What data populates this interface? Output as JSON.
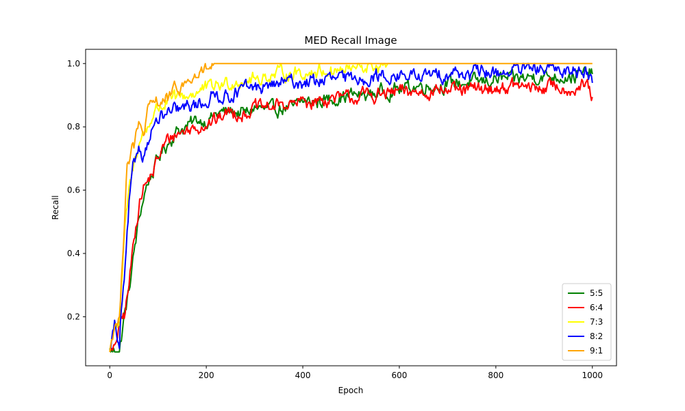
{
  "chart_data": {
    "type": "line",
    "title": "MED Recall Image",
    "xlabel": "Epoch",
    "ylabel": "Recall",
    "xlim": [
      -50,
      1050
    ],
    "ylim": [
      0.045,
      1.045
    ],
    "xticks": [
      0,
      200,
      400,
      600,
      800,
      1000
    ],
    "yticks": [
      0.2,
      0.4,
      0.6,
      0.8,
      1.0
    ],
    "ytick_labels": [
      "0.2",
      "0.4",
      "0.6",
      "0.8",
      "1.0"
    ],
    "grid": false,
    "legend_position": "lower-right",
    "series": [
      {
        "name": "5:5",
        "color": "#008000",
        "x": [
          0,
          10,
          20,
          30,
          40,
          50,
          60,
          70,
          80,
          90,
          100,
          120,
          140,
          160,
          180,
          200,
          220,
          250,
          280,
          300,
          330,
          350,
          380,
          400,
          430,
          460,
          500,
          530,
          560,
          600,
          640,
          680,
          720,
          760,
          800,
          840,
          880,
          920,
          960,
          1000
        ],
        "y": [
          0.09,
          0.09,
          0.09,
          0.2,
          0.28,
          0.4,
          0.5,
          0.58,
          0.63,
          0.66,
          0.7,
          0.75,
          0.79,
          0.8,
          0.82,
          0.82,
          0.84,
          0.85,
          0.84,
          0.86,
          0.85,
          0.86,
          0.86,
          0.88,
          0.88,
          0.89,
          0.9,
          0.9,
          0.91,
          0.92,
          0.93,
          0.93,
          0.94,
          0.94,
          0.95,
          0.95,
          0.96,
          0.96,
          0.96,
          0.97
        ]
      },
      {
        "name": "6:4",
        "color": "#ff0000",
        "x": [
          0,
          10,
          20,
          30,
          40,
          50,
          60,
          70,
          80,
          90,
          100,
          120,
          140,
          160,
          180,
          200,
          220,
          250,
          280,
          300,
          330,
          350,
          380,
          400,
          430,
          460,
          500,
          530,
          560,
          600,
          640,
          680,
          720,
          760,
          800,
          840,
          880,
          920,
          960,
          990,
          1000
        ],
        "y": [
          0.09,
          0.09,
          0.18,
          0.2,
          0.3,
          0.45,
          0.55,
          0.61,
          0.63,
          0.66,
          0.7,
          0.76,
          0.78,
          0.79,
          0.8,
          0.81,
          0.82,
          0.85,
          0.84,
          0.86,
          0.86,
          0.87,
          0.87,
          0.88,
          0.88,
          0.89,
          0.89,
          0.9,
          0.9,
          0.91,
          0.91,
          0.92,
          0.91,
          0.92,
          0.92,
          0.93,
          0.92,
          0.93,
          0.92,
          0.93,
          0.89
        ]
      },
      {
        "name": "7:3",
        "color": "#ffff00",
        "x": [
          0,
          10,
          20,
          25,
          30,
          40,
          50,
          60,
          70,
          80,
          90,
          100,
          120,
          140,
          160,
          180,
          200,
          220,
          250,
          280,
          300,
          330,
          360,
          400,
          450,
          500,
          540,
          560,
          580
        ],
        "y": [
          0.09,
          0.18,
          0.18,
          0.3,
          0.45,
          0.6,
          0.68,
          0.75,
          0.78,
          0.8,
          0.84,
          0.86,
          0.88,
          0.89,
          0.9,
          0.91,
          0.92,
          0.93,
          0.94,
          0.95,
          0.95,
          0.96,
          0.97,
          0.97,
          0.98,
          0.98,
          0.99,
          0.99,
          1.0
        ]
      },
      {
        "name": "8:2",
        "color": "#0000ff",
        "x": [
          0,
          10,
          20,
          25,
          30,
          40,
          50,
          60,
          70,
          80,
          90,
          100,
          120,
          140,
          160,
          180,
          200,
          220,
          250,
          280,
          300,
          330,
          360,
          400,
          450,
          500,
          550,
          600,
          650,
          700,
          750,
          800,
          850,
          900,
          950,
          990,
          1000
        ],
        "y": [
          0.09,
          0.18,
          0.09,
          0.25,
          0.3,
          0.55,
          0.68,
          0.74,
          0.71,
          0.76,
          0.8,
          0.82,
          0.84,
          0.85,
          0.86,
          0.87,
          0.88,
          0.9,
          0.9,
          0.92,
          0.92,
          0.93,
          0.94,
          0.94,
          0.95,
          0.95,
          0.96,
          0.96,
          0.96,
          0.97,
          0.97,
          0.97,
          0.98,
          0.98,
          0.98,
          0.98,
          0.94
        ]
      },
      {
        "name": "9:1",
        "color": "#ffa500",
        "x": [
          0,
          10,
          20,
          25,
          30,
          35,
          40,
          50,
          60,
          70,
          80,
          90,
          100,
          120,
          140,
          160,
          180,
          200,
          220,
          260,
          300,
          400,
          500,
          600,
          700,
          800,
          900,
          1000
        ],
        "y": [
          0.09,
          0.18,
          0.18,
          0.35,
          0.5,
          0.68,
          0.7,
          0.74,
          0.8,
          0.78,
          0.85,
          0.87,
          0.88,
          0.89,
          0.92,
          0.94,
          0.96,
          0.98,
          1.0,
          1.0,
          1.0,
          1.0,
          1.0,
          1.0,
          1.0,
          1.0,
          1.0,
          1.0
        ]
      }
    ]
  }
}
